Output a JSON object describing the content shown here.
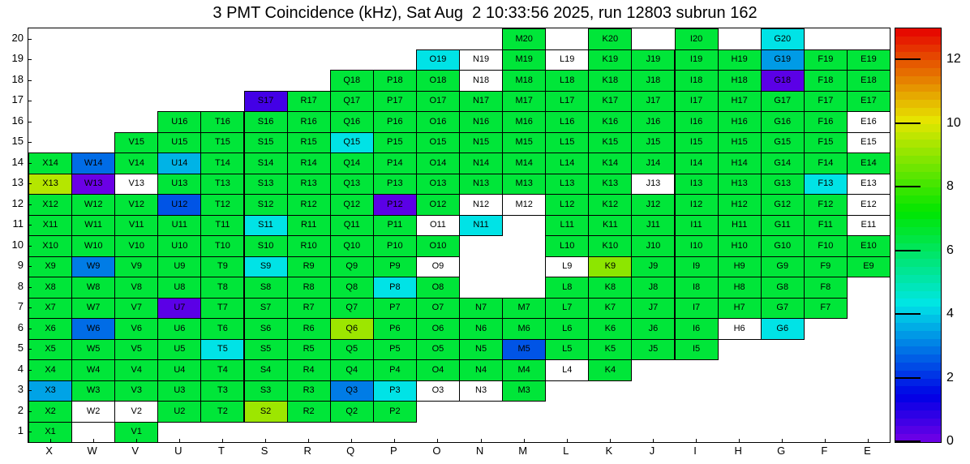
{
  "title": "3 PMT Coincidence (kHz), Sat Aug  2 10:33:56 2025, run 12803 subrun 162",
  "chart_data": {
    "type": "heatmap",
    "title": "3 PMT Coincidence (kHz), Sat Aug  2 10:33:56 2025, run 12803 subrun 162",
    "unit": "kHz",
    "run": "12803",
    "subrun": "162",
    "timestamp": "Sat Aug  2 10:33:56 2025",
    "columns": [
      "X",
      "W",
      "V",
      "U",
      "T",
      "S",
      "R",
      "Q",
      "P",
      "O",
      "N",
      "M",
      "L",
      "K",
      "J",
      "I",
      "H",
      "G",
      "F",
      "E"
    ],
    "rows": [
      1,
      2,
      3,
      4,
      5,
      6,
      7,
      8,
      9,
      10,
      11,
      12,
      13,
      14,
      15,
      16,
      17,
      18,
      19,
      20
    ],
    "colorbar": {
      "min": 0,
      "max": 13,
      "ticks": [
        0,
        2,
        4,
        6,
        8,
        10,
        12
      ],
      "palette": "rainbow (violet=0 to red=max)",
      "position": "right"
    },
    "value_encoding": "kHz estimated from color scale; 0 = white cell with label; absent id = no channel (blank)",
    "cells": {
      "M20": 6.5,
      "K20": 6.5,
      "I20": 6.5,
      "G20": 4.3,
      "O19": 4.3,
      "N19": 0,
      "M19": 6.5,
      "L19": 0,
      "K19": 6.5,
      "J19": 6.5,
      "I19": 6.5,
      "H19": 6.5,
      "G19": 3.4,
      "F19": 6.5,
      "E19": 6.5,
      "Q18": 6.5,
      "P18": 6.5,
      "O18": 6.5,
      "N18": 0,
      "M18": 6.5,
      "L18": 6.5,
      "K18": 6.5,
      "J18": 6.5,
      "I18": 6.5,
      "H18": 6.5,
      "G18": 0.3,
      "F18": 6.5,
      "E18": 6.5,
      "S17": 0.6,
      "R17": 6.5,
      "Q17": 6.5,
      "P17": 6.5,
      "O17": 6.5,
      "N17": 6.5,
      "M17": 6.5,
      "L17": 6.5,
      "K17": 6.5,
      "J17": 6.5,
      "I17": 6.5,
      "H17": 6.5,
      "G17": 6.5,
      "F17": 6.5,
      "E17": 6.5,
      "U16": 6.5,
      "T16": 6.5,
      "S16": 6.5,
      "R16": 6.5,
      "Q16": 6.5,
      "P16": 6.5,
      "O16": 6.5,
      "N16": 6.5,
      "M16": 6.5,
      "L16": 6.5,
      "K16": 6.5,
      "J16": 6.5,
      "I16": 6.5,
      "H16": 6.5,
      "G16": 6.5,
      "F16": 6.5,
      "E16": 0,
      "V15": 6.5,
      "U15": 6.5,
      "T15": 6.5,
      "S15": 6.5,
      "R15": 6.5,
      "Q15": 4.3,
      "P15": 6.5,
      "O15": 6.5,
      "N15": 6.5,
      "M15": 6.5,
      "L15": 6.5,
      "K15": 6.5,
      "J15": 6.5,
      "I15": 6.5,
      "H15": 6.5,
      "G15": 6.5,
      "F15": 6.5,
      "E15": 0,
      "X14": 6.5,
      "W14": 2.8,
      "V14": 6.5,
      "U14": 3.7,
      "T14": 6.5,
      "S14": 6.5,
      "R14": 6.5,
      "Q14": 6.5,
      "P14": 6.5,
      "O14": 6.5,
      "N14": 6.5,
      "M14": 6.5,
      "L14": 6.5,
      "K14": 6.5,
      "J14": 6.5,
      "I14": 6.5,
      "H14": 6.5,
      "G14": 6.5,
      "F14": 6.5,
      "E14": 6.5,
      "X13": 9.5,
      "W13": 0.1,
      "V13": 0,
      "U13": 6.5,
      "T13": 6.5,
      "S13": 6.5,
      "R13": 6.5,
      "Q13": 6.5,
      "P13": 6.5,
      "O13": 6.5,
      "N13": 6.5,
      "M13": 6.5,
      "L13": 6.5,
      "K13": 6.5,
      "J13": 0,
      "I13": 6.5,
      "H13": 6.5,
      "G13": 6.5,
      "F13": 4.3,
      "E13": 0,
      "X12": 6.5,
      "W12": 6.5,
      "V12": 6.5,
      "U12": 2.5,
      "T12": 6.5,
      "S12": 6.5,
      "R12": 6.5,
      "Q12": 6.5,
      "P12": 0.3,
      "O12": 6.5,
      "N12": 0,
      "M12": 0,
      "L12": 6.5,
      "K12": 6.5,
      "J12": 6.5,
      "I12": 6.5,
      "H12": 6.5,
      "G12": 6.5,
      "F12": 6.5,
      "E12": 0,
      "X11": 6.5,
      "W11": 6.5,
      "V11": 6.5,
      "U11": 6.5,
      "T11": 6.5,
      "S11": 4.3,
      "R11": 6.5,
      "Q11": 6.5,
      "P11": 6.5,
      "O11": 0,
      "N11": 4.3,
      "L11": 6.5,
      "K11": 6.5,
      "J11": 6.5,
      "I11": 6.5,
      "H11": 6.5,
      "G11": 6.5,
      "F11": 6.5,
      "E11": 0,
      "X10": 6.5,
      "W10": 6.5,
      "V10": 6.5,
      "U10": 6.5,
      "T10": 6.5,
      "S10": 6.5,
      "R10": 6.5,
      "Q10": 6.5,
      "P10": 6.5,
      "O10": 6.5,
      "L10": 6.5,
      "K10": 6.5,
      "J10": 6.5,
      "I10": 6.5,
      "H10": 6.5,
      "G10": 6.5,
      "F10": 6.5,
      "E10": 6.5,
      "X9": 6.5,
      "W9": 3,
      "V9": 6.5,
      "U9": 6.5,
      "T9": 6.5,
      "S9": 4.3,
      "R9": 6.5,
      "Q9": 6.5,
      "P9": 6.5,
      "O9": 0,
      "L9": 0,
      "K9": 9,
      "J9": 6.5,
      "I9": 6.5,
      "H9": 6.5,
      "G9": 6.5,
      "F9": 6.5,
      "E9": 6.5,
      "X8": 6.5,
      "W8": 6.5,
      "V8": 6.5,
      "U8": 6.5,
      "T8": 6.5,
      "S8": 6.5,
      "R8": 6.5,
      "Q8": 6.5,
      "P8": 4.3,
      "O8": 6.5,
      "L8": 6.5,
      "K8": 6.5,
      "J8": 6.5,
      "I8": 6.5,
      "H8": 6.5,
      "G8": 6.5,
      "F8": 6.5,
      "X7": 6.5,
      "W7": 6.5,
      "V7": 6.5,
      "U7": 0.3,
      "T7": 6.5,
      "S7": 6.5,
      "R7": 6.5,
      "Q7": 6.5,
      "P7": 6.5,
      "O7": 6.5,
      "N7": 6.5,
      "M7": 6.5,
      "L7": 6.5,
      "K7": 6.5,
      "J7": 6.5,
      "I7": 6.5,
      "H7": 6.5,
      "G7": 6.5,
      "F7": 6.5,
      "X6": 6.5,
      "W6": 2.8,
      "V6": 6.5,
      "U6": 6.5,
      "T6": 6.5,
      "S6": 6.5,
      "R6": 6.5,
      "Q6": 9.2,
      "P6": 6.5,
      "O6": 6.5,
      "N6": 6.5,
      "M6": 6.5,
      "L6": 6.5,
      "K6": 6.5,
      "J6": 6.5,
      "I6": 6.5,
      "H6": 0,
      "G6": 4.3,
      "X5": 6.5,
      "W5": 6.5,
      "V5": 6.5,
      "U5": 6.5,
      "T5": 4.3,
      "S5": 6.5,
      "R5": 6.5,
      "Q5": 6.5,
      "P5": 6.5,
      "O5": 6.5,
      "N5": 6.5,
      "M5": 2.5,
      "L5": 6.5,
      "K5": 6.5,
      "J5": 6.5,
      "I5": 6.5,
      "X4": 6.5,
      "W4": 6.5,
      "V4": 6.5,
      "U4": 6.5,
      "T4": 6.5,
      "S4": 6.5,
      "R4": 6.5,
      "Q4": 6.5,
      "P4": 6.5,
      "O4": 6.5,
      "N4": 6.5,
      "M4": 6.5,
      "L4": 0,
      "K4": 6.5,
      "X3": 3.5,
      "W3": 6.5,
      "V3": 6.5,
      "U3": 6.5,
      "T3": 6.5,
      "S3": 6.5,
      "R3": 6.5,
      "Q3": 3,
      "P3": 4.3,
      "O3": 0,
      "N3": 0,
      "M3": 6.5,
      "X2": 6.5,
      "W2": 0,
      "V2": 0,
      "U2": 6.5,
      "T2": 6.5,
      "S2": 9.2,
      "R2": 6.5,
      "Q2": 6.5,
      "P2": 6.5,
      "X1": 6.5,
      "V1": 6.5
    }
  }
}
